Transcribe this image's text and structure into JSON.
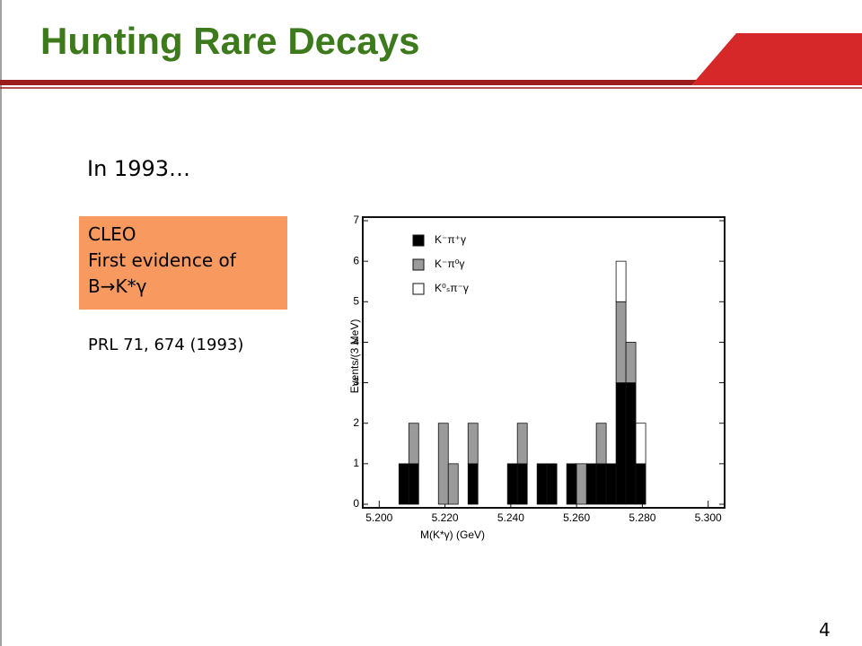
{
  "slide": {
    "title": "Hunting Rare Decays",
    "intro": "In 1993…",
    "box": [
      "CLEO",
      "First evidence of",
      "B→K*γ"
    ],
    "reference": "PRL 71, 674 (1993)",
    "page_number": "4"
  },
  "chart_data": {
    "type": "histogram",
    "stacked": true,
    "x_label": "M(K*γ) (GeV)",
    "y_label": "Events/(3 MeV)",
    "bins": [
      5.2,
      5.203,
      5.206,
      5.209,
      5.212,
      5.215,
      5.218,
      5.221,
      5.224,
      5.227,
      5.23,
      5.233,
      5.236,
      5.239,
      5.242,
      5.245,
      5.248,
      5.251,
      5.254,
      5.257,
      5.26,
      5.263,
      5.266,
      5.269,
      5.272,
      5.275,
      5.278,
      5.281
    ],
    "series": [
      {
        "name": "K⁻π⁺γ",
        "color": "#000000",
        "values": [
          0,
          0,
          1,
          1,
          0,
          0,
          0,
          0,
          0,
          1,
          0,
          0,
          0,
          1,
          1,
          0,
          1,
          1,
          0,
          1,
          0,
          1,
          1,
          1,
          3,
          3,
          1
        ]
      },
      {
        "name": "K⁻π⁰γ",
        "color": "#9a9a9a",
        "values": [
          0,
          0,
          0,
          1,
          0,
          0,
          2,
          1,
          0,
          1,
          0,
          0,
          0,
          0,
          1,
          0,
          0,
          0,
          0,
          0,
          1,
          0,
          1,
          0,
          2,
          1,
          0
        ]
      },
      {
        "name": "K⁰ₛπ⁻γ",
        "color": "#ffffff",
        "values": [
          0,
          0,
          0,
          0,
          0,
          0,
          0,
          0,
          0,
          0,
          0,
          0,
          0,
          0,
          0,
          0,
          0,
          0,
          0,
          0,
          0,
          0,
          0,
          0,
          1,
          0,
          1
        ]
      }
    ],
    "xlim": [
      5.195,
      5.305
    ],
    "xticks": [
      {
        "value": 5.2,
        "label": "5.200"
      },
      {
        "value": 5.22,
        "label": "5.220"
      },
      {
        "value": 5.24,
        "label": "5.240"
      },
      {
        "value": 5.26,
        "label": "5.260"
      },
      {
        "value": 5.28,
        "label": "5.280"
      },
      {
        "value": 5.3,
        "label": "5.300"
      }
    ],
    "ylim": [
      0,
      7
    ],
    "yticks": [
      0,
      1,
      2,
      3,
      4,
      5,
      6,
      7
    ],
    "legend": "upper-left"
  }
}
